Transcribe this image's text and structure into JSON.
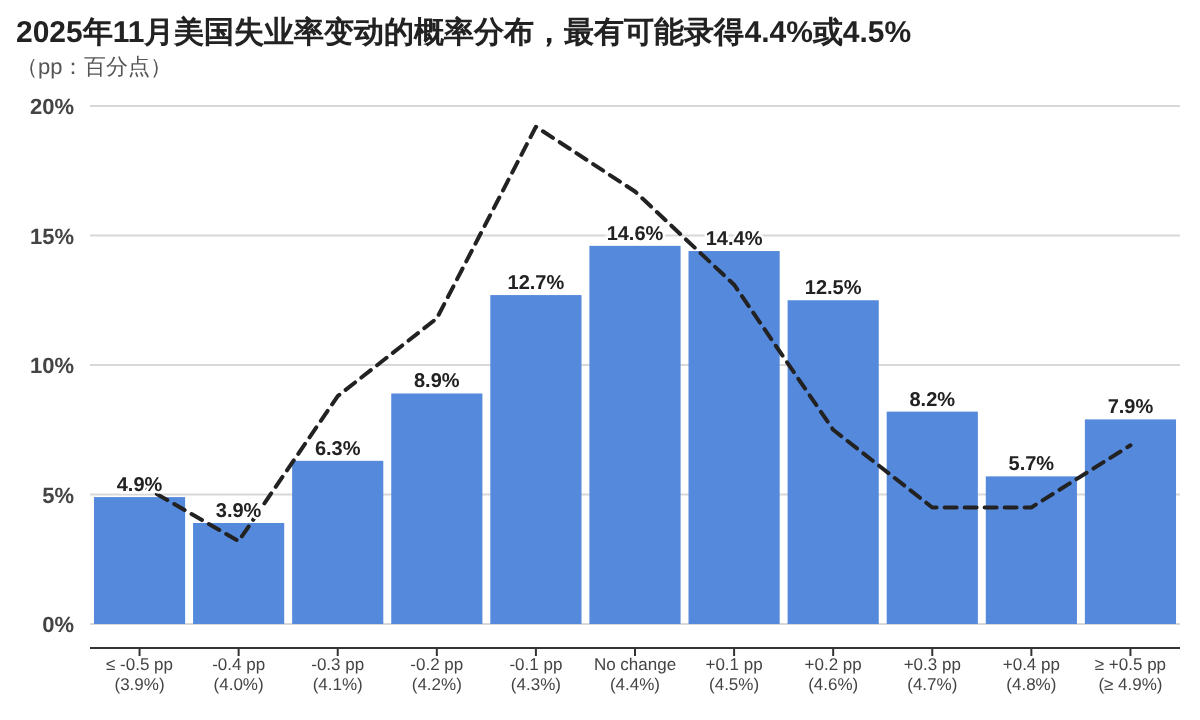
{
  "chart_data": {
    "type": "bar",
    "title": "2025年11月美国失业率变动的概率分布，最有可能录得4.4%或4.5%",
    "subtitle": "（pp：百分点）",
    "categories": [
      "≤ -0.5 pp\n(3.9%)",
      "-0.4 pp\n(4.0%)",
      "-0.3 pp\n(4.1%)",
      "-0.2 pp\n(4.2%)",
      "-0.1 pp\n(4.3%)",
      "No change\n(4.4%)",
      "+0.1 pp\n(4.5%)",
      "+0.2 pp\n(4.6%)",
      "+0.3 pp\n(4.7%)",
      "+0.4 pp\n(4.8%)",
      "≥ +0.5 pp\n(≥ 4.9%)"
    ],
    "series": [
      {
        "color": "#5589dc",
        "values": [
          4.9,
          3.9,
          6.3,
          8.9,
          12.7,
          14.6,
          14.4,
          12.5,
          8.2,
          5.7,
          7.9
        ],
        "value_labels": [
          "4.9%",
          "3.9%",
          "6.3%",
          "8.9%",
          "12.7%",
          "14.6%",
          "14.4%",
          "12.5%",
          "8.2%",
          "5.7%",
          "7.9%"
        ]
      },
      {
        "type": "line",
        "color": "#222222",
        "line_style": "dashed",
        "marker": "none",
        "values": [
          5.4,
          3.2,
          8.8,
          11.8,
          19.2,
          16.7,
          13.1,
          7.5,
          4.5,
          4.5,
          6.9
        ]
      }
    ],
    "ylim": [
      0,
      20
    ],
    "yticks": [
      {
        "value": 0,
        "label": "0%"
      },
      {
        "value": 5,
        "label": "5%"
      },
      {
        "value": 10,
        "label": "10%"
      },
      {
        "value": 15,
        "label": "15%"
      },
      {
        "value": 20,
        "label": "20%"
      }
    ],
    "grid": "y"
  }
}
